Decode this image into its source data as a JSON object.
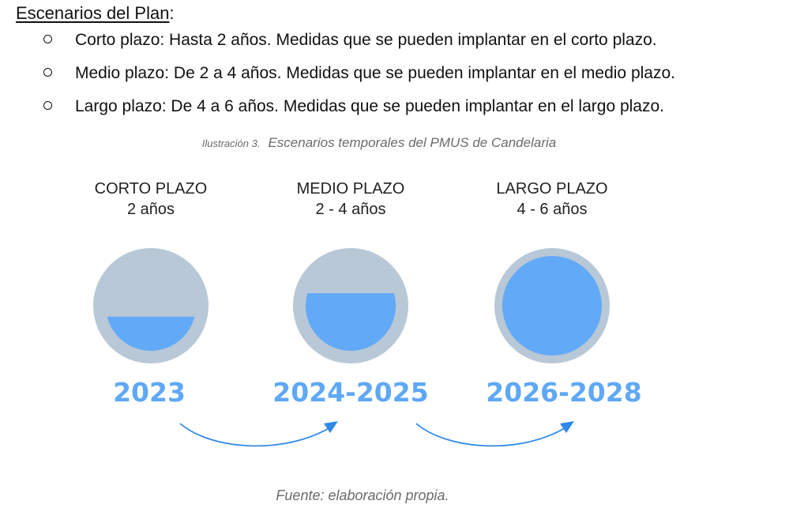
{
  "section": {
    "heading": "Escenarios del Plan",
    "heading_suffix": ":"
  },
  "bullets": [
    "Corto plazo: Hasta 2 años. Medidas que se pueden implantar en el corto plazo.",
    "Medio plazo: De 2 a 4 años. Medidas que se pueden implantar en el medio plazo.",
    "Largo plazo: De 4 a 6 años. Medidas que se pueden implantar en el largo plazo."
  ],
  "caption": {
    "number": "Ilustración 3.",
    "text": "Escenarios temporales del PMUS de Candelaria"
  },
  "scenarios": [
    {
      "title": "CORTO PLAZO",
      "duration": "2 años",
      "years": "2023",
      "fill_fraction": 0.38
    },
    {
      "title": "MEDIO PLAZO",
      "duration": "2 - 4 años",
      "years": "2024-2025",
      "fill_fraction": 0.64
    },
    {
      "title": "LARGO PLAZO",
      "duration": "4 - 6 años",
      "years": "2026-2028",
      "fill_fraction": 1.0
    }
  ],
  "colors": {
    "circle_bg": "#b8c8d6",
    "fill": "#62a9f7",
    "year_text": "#5fa8f5",
    "arrow": "#2f8ae8",
    "caption_text": "#6b6b6b"
  },
  "source": "Fuente: elaboración propia."
}
